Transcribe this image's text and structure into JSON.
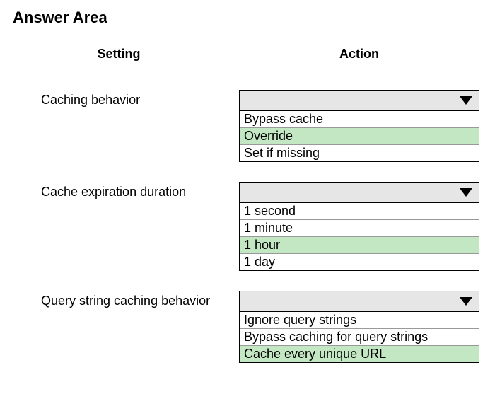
{
  "title": "Answer Area",
  "headers": {
    "setting": "Setting",
    "action": "Action"
  },
  "rows": [
    {
      "label": "Caching behavior",
      "options": [
        {
          "text": "Bypass cache",
          "highlighted": false
        },
        {
          "text": "Override",
          "highlighted": true
        },
        {
          "text": "Set if missing",
          "highlighted": false
        }
      ]
    },
    {
      "label": "Cache expiration duration",
      "options": [
        {
          "text": "1 second",
          "highlighted": false
        },
        {
          "text": "1 minute",
          "highlighted": false
        },
        {
          "text": "1 hour",
          "highlighted": true
        },
        {
          "text": "1 day",
          "highlighted": false
        }
      ]
    },
    {
      "label": "Query string caching behavior",
      "options": [
        {
          "text": "Ignore query strings",
          "highlighted": false
        },
        {
          "text": "Bypass caching for query strings",
          "highlighted": false
        },
        {
          "text": "Cache every unique URL",
          "highlighted": true
        }
      ]
    }
  ],
  "colors": {
    "highlight": "#c3e6c3",
    "dropdown_bg": "#e6e6e6",
    "border": "#000000",
    "option_border": "#999999",
    "background": "#ffffff",
    "text": "#000000"
  },
  "typography": {
    "title_fontsize": 22,
    "header_fontsize": 18,
    "label_fontsize": 18,
    "option_fontsize": 18,
    "font_family": "Arial"
  }
}
